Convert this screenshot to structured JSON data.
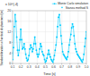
{
  "chart_data": {
    "type": "line",
    "xlabel": "Time [s]",
    "ylabel": "Standard deviation of vertical displacement [m]",
    "annotations": [
      "x 10^{-4}"
    ],
    "x": [
      0.1,
      0.112,
      0.12,
      0.13,
      0.14,
      0.15,
      0.16,
      0.17,
      0.18,
      0.19,
      0.2,
      0.21,
      0.22,
      0.23,
      0.24,
      0.25,
      0.26,
      0.27,
      0.28,
      0.29,
      0.3,
      0.31,
      0.32,
      0.33,
      0.34,
      0.35,
      0.36,
      0.37,
      0.38,
      0.39,
      0.4,
      0.41,
      0.42,
      0.43,
      0.44,
      0.45,
      0.46,
      0.47,
      0.48,
      0.49,
      0.5,
      0.51,
      0.52,
      0.53,
      0.54,
      0.55,
      0.56,
      0.57,
      0.58,
      0.59,
      0.6,
      0.61,
      0.62,
      0.63,
      0.64,
      0.65,
      0.66,
      0.67,
      0.68,
      0.69,
      0.7,
      0.71,
      0.72,
      0.73,
      0.74,
      0.75,
      0.76,
      0.77,
      0.78,
      0.79,
      0.8,
      0.81,
      0.82,
      0.83,
      0.84,
      0.85,
      0.86,
      0.87,
      0.88,
      0.89,
      0.9,
      0.91,
      0.92,
      0.93,
      0.94,
      0.95,
      0.96,
      0.97,
      0.98,
      0.99,
      1.0
    ],
    "series": [
      {
        "name": "Monte Carlo simulation",
        "color": "#00CCFF",
        "marker": "square",
        "line_style": "solid",
        "values": [
          1.5,
          6.0,
          14.0,
          18.5,
          16.0,
          10.0,
          5.0,
          3.0,
          5.0,
          9.0,
          13.0,
          9.0,
          5.5,
          6.0,
          7.5,
          5.5,
          3.5,
          2.0,
          1.0,
          1.5,
          3.0,
          5.5,
          7.0,
          6.0,
          4.5,
          5.5,
          7.5,
          10.0,
          7.5,
          5.0,
          3.5,
          2.5,
          3.5,
          5.5,
          7.5,
          6.5,
          4.5,
          3.5,
          3.0,
          1.5,
          0.5,
          1.0,
          2.0,
          3.5,
          5.0,
          3.5,
          2.5,
          1.5,
          1.0,
          0.5,
          1.5,
          3.0,
          5.0,
          7.0,
          10.0,
          14.0,
          17.5,
          18.5,
          14.5,
          10.5,
          7.5,
          4.5,
          3.5,
          3.0,
          2.5,
          2.0,
          1.5,
          2.5,
          4.5,
          7.0,
          9.0,
          11.0,
          13.5,
          15.0,
          14.0,
          10.5,
          7.5,
          5.5,
          4.5,
          3.5,
          3.0,
          2.5,
          2.0,
          1.5,
          1.0,
          0.5,
          1.5,
          3.5,
          6.5,
          9.5,
          12.0
        ]
      },
      {
        "name": "Stanza method S",
        "color": "#00CCFF",
        "marker": "square",
        "line_style": "none",
        "values": [
          1.5,
          6.0,
          14.0,
          18.5,
          16.0,
          10.0,
          5.0,
          3.0,
          5.0,
          9.0,
          13.0,
          9.0,
          5.5,
          6.0,
          7.5,
          5.5,
          3.5,
          2.0,
          1.0,
          1.5,
          3.0,
          5.5,
          7.0,
          6.0,
          4.5,
          5.5,
          7.5,
          10.0,
          7.5,
          5.0,
          3.5,
          2.5,
          3.5,
          5.5,
          7.5,
          6.5,
          4.5,
          3.5,
          3.0,
          1.5,
          0.5,
          1.0,
          2.0,
          3.5,
          5.0,
          3.5,
          2.5,
          1.5,
          1.0,
          0.5,
          1.5,
          3.0,
          5.0,
          7.0,
          10.0,
          14.0,
          17.5,
          18.5,
          14.5,
          10.5,
          7.5,
          4.5,
          3.5,
          3.0,
          2.5,
          2.0,
          1.5,
          2.5,
          4.5,
          7.0,
          9.0,
          11.0,
          13.5,
          15.0,
          14.0,
          10.5,
          7.5,
          5.5,
          4.5,
          3.5,
          3.0,
          2.5,
          2.0,
          1.5,
          1.0,
          0.5,
          1.5,
          3.5,
          6.5,
          9.5,
          12.0
        ]
      }
    ],
    "xlim": [
      0.1,
      1.0
    ],
    "ylim": [
      0,
      20
    ],
    "xticks": [
      0.1,
      0.2,
      0.3,
      0.4,
      0.5,
      0.6,
      0.7,
      0.8,
      0.9,
      {
        "value": 1.0,
        "label": "1.0"
      }
    ],
    "yticks": [
      0,
      4,
      8,
      12,
      16,
      20
    ],
    "grid": true,
    "legend": "upper right"
  }
}
